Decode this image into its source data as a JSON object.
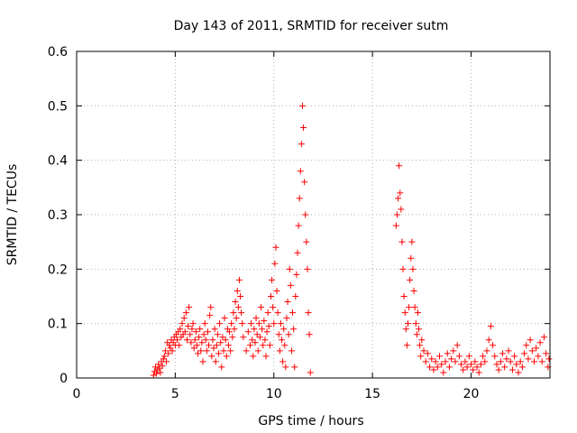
{
  "chart_data": {
    "type": "scatter",
    "title": "Day 143 of 2011, SRMTID for receiver sutm",
    "xlabel": "GPS time / hours",
    "ylabel": "SRMTID / TECUs",
    "xlim": [
      0,
      24
    ],
    "ylim": [
      0,
      0.6
    ],
    "xticks": [
      0,
      5,
      10,
      15,
      20
    ],
    "yticks": [
      0,
      0.1,
      0.2,
      0.3,
      0.4,
      0.5,
      0.6
    ],
    "grid": true,
    "marker": "plus",
    "color": "#ff0000",
    "series": [
      {
        "points": [
          [
            3.9,
            0.005
          ],
          [
            3.95,
            0.012
          ],
          [
            4.0,
            0.02
          ],
          [
            4.05,
            0.008
          ],
          [
            4.1,
            0.015
          ],
          [
            4.15,
            0.025
          ],
          [
            4.2,
            0.018
          ],
          [
            4.25,
            0.01
          ],
          [
            4.3,
            0.03
          ],
          [
            4.35,
            0.022
          ],
          [
            4.4,
            0.035
          ],
          [
            4.45,
            0.04
          ],
          [
            4.5,
            0.05
          ],
          [
            4.55,
            0.03
          ],
          [
            4.6,
            0.065
          ],
          [
            4.65,
            0.045
          ],
          [
            4.7,
            0.06
          ],
          [
            4.75,
            0.055
          ],
          [
            4.8,
            0.07
          ],
          [
            4.85,
            0.05
          ],
          [
            4.9,
            0.065
          ],
          [
            4.95,
            0.075
          ],
          [
            5.0,
            0.06
          ],
          [
            5.05,
            0.08
          ],
          [
            5.1,
            0.07
          ],
          [
            5.15,
            0.085
          ],
          [
            5.2,
            0.06
          ],
          [
            5.25,
            0.09
          ],
          [
            5.3,
            0.075
          ],
          [
            5.35,
            0.1
          ],
          [
            5.4,
            0.08
          ],
          [
            5.45,
            0.11
          ],
          [
            5.5,
            0.085
          ],
          [
            5.55,
            0.12
          ],
          [
            5.6,
            0.07
          ],
          [
            5.65,
            0.095
          ],
          [
            5.7,
            0.13
          ],
          [
            5.75,
            0.08
          ],
          [
            5.8,
            0.065
          ],
          [
            5.85,
            0.09
          ],
          [
            5.9,
            0.1
          ],
          [
            5.95,
            0.055
          ],
          [
            6.0,
            0.07
          ],
          [
            6.05,
            0.085
          ],
          [
            6.1,
            0.06
          ],
          [
            6.15,
            0.045
          ],
          [
            6.2,
            0.075
          ],
          [
            6.25,
            0.09
          ],
          [
            6.3,
            0.05
          ],
          [
            6.35,
            0.065
          ],
          [
            6.4,
            0.03
          ],
          [
            6.45,
            0.08
          ],
          [
            6.5,
            0.1
          ],
          [
            6.55,
            0.07
          ],
          [
            6.6,
            0.05
          ],
          [
            6.65,
            0.085
          ],
          [
            6.7,
            0.06
          ],
          [
            6.75,
            0.115
          ],
          [
            6.8,
            0.13
          ],
          [
            6.85,
            0.04
          ],
          [
            6.9,
            0.07
          ],
          [
            6.95,
            0.055
          ],
          [
            7.0,
            0.09
          ],
          [
            7.05,
            0.03
          ],
          [
            7.1,
            0.06
          ],
          [
            7.15,
            0.08
          ],
          [
            7.2,
            0.045
          ],
          [
            7.25,
            0.1
          ],
          [
            7.3,
            0.065
          ],
          [
            7.35,
            0.02
          ],
          [
            7.4,
            0.075
          ],
          [
            7.45,
            0.05
          ],
          [
            7.5,
            0.11
          ],
          [
            7.55,
            0.07
          ],
          [
            7.6,
            0.04
          ],
          [
            7.65,
            0.09
          ],
          [
            7.7,
            0.06
          ],
          [
            7.75,
            0.085
          ],
          [
            7.8,
            0.05
          ],
          [
            7.85,
            0.1
          ],
          [
            7.9,
            0.075
          ],
          [
            7.95,
            0.12
          ],
          [
            8.0,
            0.09
          ],
          [
            8.05,
            0.14
          ],
          [
            8.1,
            0.11
          ],
          [
            8.15,
            0.16
          ],
          [
            8.2,
            0.13
          ],
          [
            8.25,
            0.18
          ],
          [
            8.3,
            0.15
          ],
          [
            8.35,
            0.12
          ],
          [
            8.4,
            0.1
          ],
          [
            8.45,
            0.075
          ],
          [
            8.6,
            0.05
          ],
          [
            8.7,
            0.085
          ],
          [
            8.8,
            0.06
          ],
          [
            8.85,
            0.1
          ],
          [
            8.9,
            0.07
          ],
          [
            8.95,
            0.04
          ],
          [
            9.0,
            0.09
          ],
          [
            9.05,
            0.065
          ],
          [
            9.1,
            0.11
          ],
          [
            9.15,
            0.08
          ],
          [
            9.2,
            0.05
          ],
          [
            9.25,
            0.1
          ],
          [
            9.3,
            0.075
          ],
          [
            9.35,
            0.13
          ],
          [
            9.4,
            0.09
          ],
          [
            9.45,
            0.06
          ],
          [
            9.5,
            0.105
          ],
          [
            9.55,
            0.07
          ],
          [
            9.6,
            0.04
          ],
          [
            9.65,
            0.085
          ],
          [
            9.7,
            0.12
          ],
          [
            9.75,
            0.095
          ],
          [
            9.8,
            0.06
          ],
          [
            9.85,
            0.15
          ],
          [
            9.9,
            0.18
          ],
          [
            9.95,
            0.13
          ],
          [
            10.0,
            0.1
          ],
          [
            10.05,
            0.21
          ],
          [
            10.1,
            0.24
          ],
          [
            10.15,
            0.16
          ],
          [
            10.2,
            0.12
          ],
          [
            10.25,
            0.08
          ],
          [
            10.3,
            0.05
          ],
          [
            10.35,
            0.1
          ],
          [
            10.4,
            0.07
          ],
          [
            10.45,
            0.03
          ],
          [
            10.5,
            0.09
          ],
          [
            10.55,
            0.06
          ],
          [
            10.6,
            0.02
          ],
          [
            10.65,
            0.11
          ],
          [
            10.7,
            0.14
          ],
          [
            10.75,
            0.08
          ],
          [
            10.8,
            0.2
          ],
          [
            10.85,
            0.17
          ],
          [
            10.9,
            0.05
          ],
          [
            10.95,
            0.12
          ],
          [
            11.0,
            0.09
          ],
          [
            11.05,
            0.02
          ],
          [
            11.1,
            0.15
          ],
          [
            11.15,
            0.19
          ],
          [
            11.2,
            0.23
          ],
          [
            11.25,
            0.28
          ],
          [
            11.3,
            0.33
          ],
          [
            11.35,
            0.38
          ],
          [
            11.4,
            0.43
          ],
          [
            11.45,
            0.5
          ],
          [
            11.5,
            0.46
          ],
          [
            11.55,
            0.36
          ],
          [
            11.6,
            0.3
          ],
          [
            11.65,
            0.25
          ],
          [
            11.7,
            0.2
          ],
          [
            11.75,
            0.12
          ],
          [
            11.8,
            0.08
          ],
          [
            11.85,
            0.01
          ],
          [
            16.2,
            0.28
          ],
          [
            16.25,
            0.3
          ],
          [
            16.3,
            0.33
          ],
          [
            16.35,
            0.39
          ],
          [
            16.4,
            0.34
          ],
          [
            16.45,
            0.31
          ],
          [
            16.5,
            0.25
          ],
          [
            16.55,
            0.2
          ],
          [
            16.6,
            0.15
          ],
          [
            16.65,
            0.12
          ],
          [
            16.7,
            0.09
          ],
          [
            16.75,
            0.06
          ],
          [
            16.8,
            0.1
          ],
          [
            16.85,
            0.13
          ],
          [
            16.9,
            0.18
          ],
          [
            16.95,
            0.22
          ],
          [
            17.0,
            0.25
          ],
          [
            17.05,
            0.2
          ],
          [
            17.1,
            0.16
          ],
          [
            17.15,
            0.13
          ],
          [
            17.2,
            0.1
          ],
          [
            17.25,
            0.08
          ],
          [
            17.3,
            0.12
          ],
          [
            17.35,
            0.09
          ],
          [
            17.4,
            0.06
          ],
          [
            17.45,
            0.04
          ],
          [
            17.5,
            0.07
          ],
          [
            17.6,
            0.05
          ],
          [
            17.7,
            0.03
          ],
          [
            17.8,
            0.045
          ],
          [
            17.9,
            0.02
          ],
          [
            18.0,
            0.035
          ],
          [
            18.1,
            0.015
          ],
          [
            18.2,
            0.03
          ],
          [
            18.3,
            0.02
          ],
          [
            18.4,
            0.04
          ],
          [
            18.5,
            0.025
          ],
          [
            18.6,
            0.01
          ],
          [
            18.7,
            0.03
          ],
          [
            18.8,
            0.045
          ],
          [
            18.9,
            0.02
          ],
          [
            19.0,
            0.035
          ],
          [
            19.1,
            0.05
          ],
          [
            19.2,
            0.03
          ],
          [
            19.3,
            0.06
          ],
          [
            19.4,
            0.04
          ],
          [
            19.5,
            0.025
          ],
          [
            19.6,
            0.015
          ],
          [
            19.7,
            0.03
          ],
          [
            19.8,
            0.02
          ],
          [
            19.9,
            0.04
          ],
          [
            20.0,
            0.025
          ],
          [
            20.1,
            0.015
          ],
          [
            20.2,
            0.03
          ],
          [
            20.3,
            0.02
          ],
          [
            20.4,
            0.01
          ],
          [
            20.5,
            0.025
          ],
          [
            20.6,
            0.04
          ],
          [
            20.7,
            0.03
          ],
          [
            20.8,
            0.05
          ],
          [
            20.9,
            0.07
          ],
          [
            21.0,
            0.095
          ],
          [
            21.1,
            0.06
          ],
          [
            21.2,
            0.04
          ],
          [
            21.3,
            0.025
          ],
          [
            21.4,
            0.015
          ],
          [
            21.5,
            0.03
          ],
          [
            21.6,
            0.045
          ],
          [
            21.7,
            0.02
          ],
          [
            21.8,
            0.035
          ],
          [
            21.9,
            0.05
          ],
          [
            22.0,
            0.03
          ],
          [
            22.1,
            0.015
          ],
          [
            22.2,
            0.04
          ],
          [
            22.3,
            0.025
          ],
          [
            22.4,
            0.01
          ],
          [
            22.5,
            0.03
          ],
          [
            22.6,
            0.02
          ],
          [
            22.7,
            0.045
          ],
          [
            22.8,
            0.06
          ],
          [
            22.9,
            0.035
          ],
          [
            23.0,
            0.07
          ],
          [
            23.1,
            0.05
          ],
          [
            23.2,
            0.03
          ],
          [
            23.3,
            0.055
          ],
          [
            23.4,
            0.04
          ],
          [
            23.5,
            0.065
          ],
          [
            23.6,
            0.03
          ],
          [
            23.7,
            0.075
          ],
          [
            23.8,
            0.045
          ],
          [
            23.9,
            0.02
          ],
          [
            23.95,
            0.035
          ]
        ]
      }
    ]
  }
}
